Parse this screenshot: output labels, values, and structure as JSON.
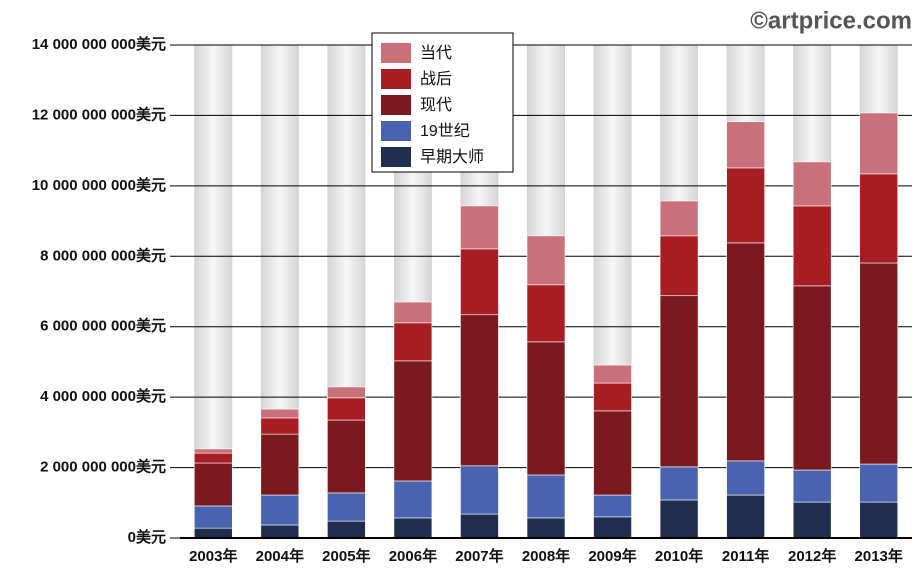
{
  "chart_data": {
    "type": "stacked_bar",
    "watermark": "©artprice.com",
    "categories": [
      "2003年",
      "2004年",
      "2005年",
      "2006年",
      "2007年",
      "2008年",
      "2009年",
      "2010年",
      "2011年",
      "2012年",
      "2013年"
    ],
    "series": [
      {
        "name": "早期大师",
        "color": "#1f2d4f",
        "values": [
          280000000,
          370000000,
          480000000,
          570000000,
          680000000,
          570000000,
          600000000,
          1080000000,
          1220000000,
          1020000000,
          1020000000
        ]
      },
      {
        "name": "19世纪",
        "color": "#4a63b0",
        "values": [
          630000000,
          850000000,
          800000000,
          1050000000,
          1370000000,
          1220000000,
          620000000,
          940000000,
          970000000,
          910000000,
          1080000000
        ]
      },
      {
        "name": "现代",
        "color": "#7a1a1f",
        "values": [
          1220000000,
          1730000000,
          2070000000,
          3410000000,
          4290000000,
          3780000000,
          2390000000,
          4860000000,
          6190000000,
          5230000000,
          5710000000
        ]
      },
      {
        "name": "战后",
        "color": "#a81c24",
        "values": [
          280000000,
          460000000,
          630000000,
          1080000000,
          1870000000,
          1620000000,
          790000000,
          1700000000,
          2130000000,
          2270000000,
          2530000000
        ]
      },
      {
        "name": "当代",
        "color": "#c9707a",
        "values": [
          120000000,
          250000000,
          310000000,
          590000000,
          1220000000,
          1390000000,
          510000000,
          990000000,
          1310000000,
          1250000000,
          1730000000
        ]
      }
    ],
    "ylim": [
      0,
      14000000000
    ],
    "yticks": [
      {
        "value": 0,
        "label": "0美元"
      },
      {
        "value": 2000000000,
        "label": "2 000 000 000美元"
      },
      {
        "value": 4000000000,
        "label": "4 000 000 000美元"
      },
      {
        "value": 6000000000,
        "label": "6 000 000 000美元"
      },
      {
        "value": 8000000000,
        "label": "8 000 000 000美元"
      },
      {
        "value": 10000000000,
        "label": "10 000 000 000美元"
      },
      {
        "value": 12000000000,
        "label": "12 000 000 000美元"
      },
      {
        "value": 14000000000,
        "label": "14 000 000 000美元"
      }
    ],
    "grid": true
  }
}
